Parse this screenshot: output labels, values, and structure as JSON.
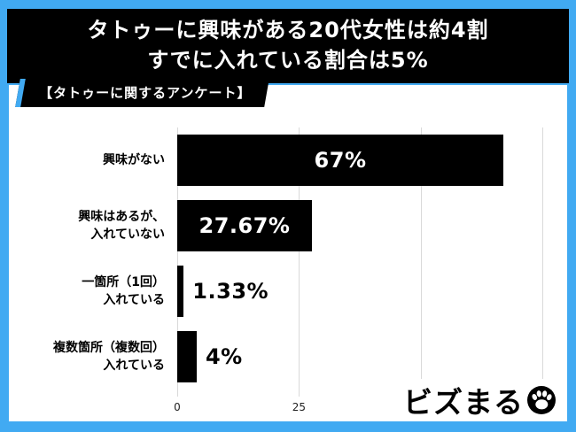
{
  "colors": {
    "frame_blue": "#41aaf2",
    "banner_black": "#000000",
    "bar_black": "#000000",
    "gridline_gray": "#d9d9d9",
    "card_white": "#ffffff"
  },
  "header": {
    "line1": "タトゥーに興味がある20代女性は約4割",
    "line2": "すでに入れている割合は5%"
  },
  "tag_label": "【タトゥーに関するアンケート】",
  "chart_data": {
    "type": "bar",
    "orientation": "horizontal",
    "title": "",
    "categories": [
      "興味がない",
      "興味はあるが、\n入れていない",
      "一箇所（1回）\n入れている",
      "複数箇所（複数回）\n入れている"
    ],
    "values": [
      67,
      27.67,
      1.33,
      4
    ],
    "value_labels": [
      "67%",
      "27.67%",
      "1.33%",
      "4%"
    ],
    "xlim": [
      0,
      75
    ],
    "xticks": [
      0,
      25,
      50,
      75
    ],
    "bar_color": "#000000",
    "grid": true,
    "legend": false
  },
  "logo": {
    "text": "ビズまる",
    "icon": "paw-icon"
  }
}
